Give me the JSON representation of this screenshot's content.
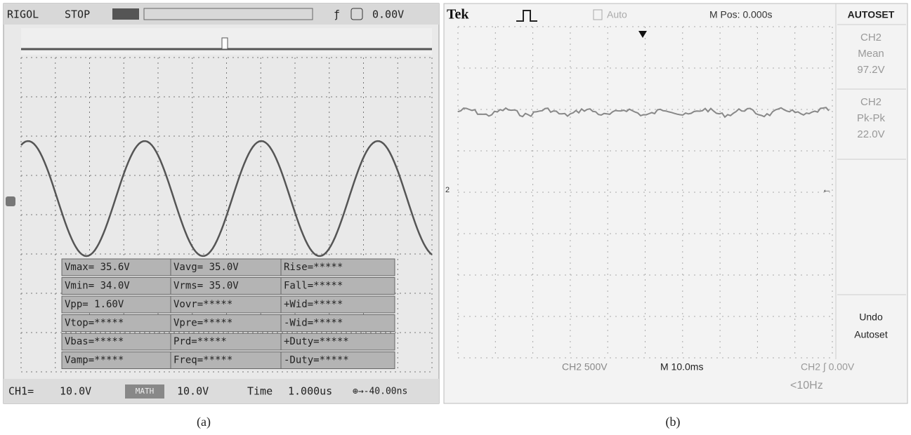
{
  "scope_a": {
    "brand": "RIGOL",
    "status": "STOP",
    "trigger_level": "0.00V",
    "measurements": [
      [
        "Vmax= 35.6V",
        "Vavg= 35.0V",
        "Rise=*****"
      ],
      [
        "Vmin= 34.0V",
        "Vrms= 35.0V",
        "Fall=*****"
      ],
      [
        "Vpp= 1.60V",
        "Vovr=*****",
        "+Wid=*****"
      ],
      [
        "Vtop=*****",
        "Vpre=*****",
        "-Wid=*****"
      ],
      [
        "Vbas=*****",
        "Prd=*****",
        "+Duty=*****"
      ],
      [
        "Vamp=*****",
        "Freq=*****",
        "-Duty=*****"
      ]
    ],
    "channel": "CH1=",
    "ch_scale": "10.0V",
    "math_label": "MATH",
    "math_scale": "10.0V",
    "time_label": "Time",
    "time_scale": "1.000us",
    "offset": "⊕→-40.00ns",
    "caption": "(a)"
  },
  "scope_b": {
    "brand": "Tek",
    "mode": "Auto",
    "position": "M Pos: 0.000s",
    "menu_title": "AUTOSET",
    "readouts": [
      [
        "CH2",
        "Mean",
        "97.2V"
      ],
      [
        "CH2",
        "Pk-Pk",
        "22.0V"
      ]
    ],
    "undo": [
      "Undo",
      "Autoset"
    ],
    "marker": "2",
    "ch_scale": "CH2 500V",
    "time_scale": "M 10.0ms",
    "trigger": "CH2 ∫ 0.00V",
    "frequency": "<10Hz",
    "caption": "(b)"
  }
}
